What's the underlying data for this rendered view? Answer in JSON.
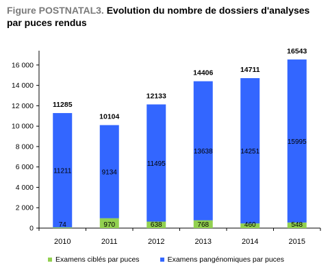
{
  "title_prefix": "Figure POSTNATAL3.",
  "title_main": "Evolution du nombre de dossiers d'analyses par puces rendus",
  "colors": {
    "targeted": "#92d050",
    "pangenomic": "#3366ff",
    "axis": "#000000"
  },
  "chart_data": {
    "type": "bar",
    "stacked": true,
    "categories": [
      "2010",
      "2011",
      "2012",
      "2013",
      "2014",
      "2015"
    ],
    "series": [
      {
        "name": "Examens ciblés par puces",
        "values": [
          74,
          970,
          638,
          768,
          460,
          548
        ]
      },
      {
        "name": "Examens pangénomiques par puces",
        "values": [
          11211,
          9134,
          11495,
          13638,
          14251,
          15995
        ]
      }
    ],
    "totals": [
      11285,
      10104,
      12133,
      14406,
      14711,
      16543
    ],
    "ylim": [
      0,
      17000
    ],
    "yticks": [
      0,
      2000,
      4000,
      6000,
      8000,
      10000,
      12000,
      14000,
      16000
    ],
    "ytick_labels": [
      "0",
      "2 000",
      "4 000",
      "6 000",
      "8 000",
      "10 000",
      "12 000",
      "14 000",
      "16 000"
    ],
    "legend_position": "bottom",
    "grid": false
  }
}
